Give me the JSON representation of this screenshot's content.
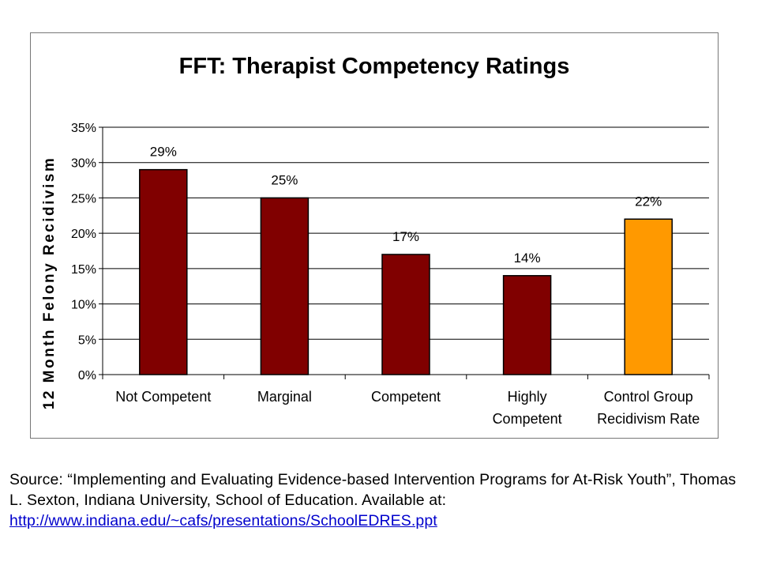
{
  "chart_data": {
    "type": "bar",
    "title": "FFT: Therapist Competency Ratings",
    "ylabel": "12 Month Felony Recidivism",
    "xlabel": "",
    "categories": [
      [
        "Not Competent"
      ],
      [
        "Marginal"
      ],
      [
        "Competent"
      ],
      [
        "Highly",
        "Competent"
      ],
      [
        "Control Group",
        "Recidivism Rate"
      ]
    ],
    "values": [
      29,
      25,
      17,
      14,
      22
    ],
    "data_labels": [
      "29%",
      "25%",
      "17%",
      "14%",
      "22%"
    ],
    "bar_colors": [
      "#800000",
      "#800000",
      "#800000",
      "#800000",
      "#ff9900"
    ],
    "ylim": [
      0,
      35
    ],
    "yticks": [
      0,
      5,
      10,
      15,
      20,
      25,
      30,
      35
    ],
    "ytick_labels": [
      "0%",
      "5%",
      "10%",
      "15%",
      "20%",
      "25%",
      "30%",
      "35%"
    ],
    "grid": true,
    "legend": "none"
  },
  "source": {
    "text": "Source: “Implementing and Evaluating Evidence-based Intervention Programs for At-Risk Youth”, Thomas L. Sexton, Indiana University, School of Education. Available at:",
    "link": "http://www.indiana.edu/~cafs/presentations/SchoolEDRES.ppt"
  }
}
